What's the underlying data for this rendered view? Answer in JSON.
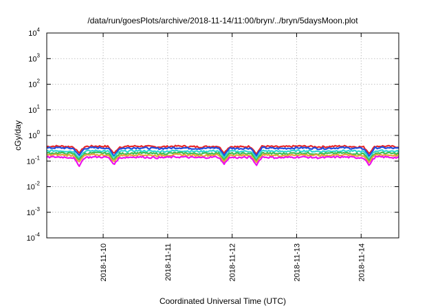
{
  "chart_data": {
    "type": "line",
    "title": "/data/run/goesPlots/archive/2018-11-14/11:00/bryn/../bryn/5daysMoon.plot",
    "xlabel": "Coordinated Universal Time (UTC)",
    "ylabel": "cGy/day",
    "yscale": "log",
    "ylim": [
      0.0001,
      10000
    ],
    "xlim": [
      "2018-11-09T03:00",
      "2018-11-14T14:00"
    ],
    "grid": true,
    "legend": "none",
    "y_ticks": [
      {
        "base": "10",
        "exp": "-4",
        "value": 0.0001
      },
      {
        "base": "10",
        "exp": "-3",
        "value": 0.001
      },
      {
        "base": "10",
        "exp": "-2",
        "value": 0.01
      },
      {
        "base": "10",
        "exp": "-1",
        "value": 0.1
      },
      {
        "base": "10",
        "exp": "0",
        "value": 1
      },
      {
        "base": "10",
        "exp": "1",
        "value": 10
      },
      {
        "base": "10",
        "exp": "2",
        "value": 100
      },
      {
        "base": "10",
        "exp": "3",
        "value": 1000
      },
      {
        "base": "10",
        "exp": "4",
        "value": 10000
      }
    ],
    "x_ticks": [
      {
        "label": "2018-11-10",
        "value": "2018-11-10T00:00"
      },
      {
        "label": "2018-11-11",
        "value": "2018-11-11T00:00"
      },
      {
        "label": "2018-11-12",
        "value": "2018-11-12T00:00"
      },
      {
        "label": "2018-11-13",
        "value": "2018-11-13T00:00"
      },
      {
        "label": "2018-11-14",
        "value": "2018-11-14T00:00"
      }
    ],
    "series": [
      {
        "color": "#e8282a",
        "base": 0.37,
        "dips": [
          {
            "x": "2018-11-09T15:00",
            "y": 0.2
          },
          {
            "x": "2018-11-10T04:00",
            "y": 0.19
          },
          {
            "x": "2018-11-11T21:00",
            "y": 0.2
          },
          {
            "x": "2018-11-12T09:00",
            "y": 0.18
          },
          {
            "x": "2018-11-14T03:00",
            "y": 0.19
          }
        ]
      },
      {
        "color": "#1f4fe0",
        "base": 0.32,
        "dips": [
          {
            "x": "2018-11-09T15:00",
            "y": 0.16
          },
          {
            "x": "2018-11-10T04:00",
            "y": 0.15
          },
          {
            "x": "2018-11-11T21:00",
            "y": 0.16
          },
          {
            "x": "2018-11-12T09:00",
            "y": 0.15
          },
          {
            "x": "2018-11-14T03:00",
            "y": 0.15
          }
        ]
      },
      {
        "color": "#2fd7d0",
        "base": 0.245,
        "dips": [
          {
            "x": "2018-11-09T15:00",
            "y": 0.13
          },
          {
            "x": "2018-11-10T04:00",
            "y": 0.13
          },
          {
            "x": "2018-11-11T21:00",
            "y": 0.13
          },
          {
            "x": "2018-11-12T09:00",
            "y": 0.12
          },
          {
            "x": "2018-11-14T03:00",
            "y": 0.12
          }
        ]
      },
      {
        "color": "#3fbf4f",
        "base": 0.2,
        "dips": [
          {
            "x": "2018-11-09T15:00",
            "y": 0.11
          },
          {
            "x": "2018-11-10T04:00",
            "y": 0.11
          },
          {
            "x": "2018-11-11T21:00",
            "y": 0.11
          },
          {
            "x": "2018-11-12T09:00",
            "y": 0.1
          },
          {
            "x": "2018-11-14T03:00",
            "y": 0.1
          }
        ]
      },
      {
        "color": "#e8a040",
        "base": 0.17,
        "dips": [
          {
            "x": "2018-11-09T15:00",
            "y": 0.09
          },
          {
            "x": "2018-11-10T04:00",
            "y": 0.09
          },
          {
            "x": "2018-11-11T21:00",
            "y": 0.09
          },
          {
            "x": "2018-11-12T09:00",
            "y": 0.085
          },
          {
            "x": "2018-11-14T03:00",
            "y": 0.085
          }
        ]
      },
      {
        "color": "#ee10ee",
        "base": 0.14,
        "dips": [
          {
            "x": "2018-11-09T15:00",
            "y": 0.06
          },
          {
            "x": "2018-11-10T04:00",
            "y": 0.07
          },
          {
            "x": "2018-11-11T21:00",
            "y": 0.075
          },
          {
            "x": "2018-11-12T09:00",
            "y": 0.065
          },
          {
            "x": "2018-11-14T03:00",
            "y": 0.065
          }
        ]
      }
    ]
  }
}
